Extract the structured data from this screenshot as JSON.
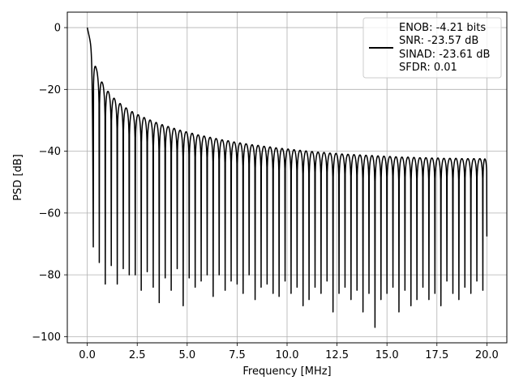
{
  "chart_data": {
    "type": "line",
    "title": "",
    "xlabel": "Frequency [MHz]",
    "ylabel": "PSD [dB]",
    "xlim": [
      -1.0,
      21.0
    ],
    "ylim": [
      -102,
      5
    ],
    "x_ticks": [
      0.0,
      2.5,
      5.0,
      7.5,
      10.0,
      12.5,
      15.0,
      17.5,
      20.0
    ],
    "x_tick_labels": [
      "0.0",
      "2.5",
      "5.0",
      "7.5",
      "10.0",
      "12.5",
      "15.0",
      "17.5",
      "20.0"
    ],
    "y_ticks": [
      0,
      -20,
      -40,
      -60,
      -80,
      -100
    ],
    "y_tick_labels": [
      "0",
      "−20",
      "−40",
      "−60",
      "−80",
      "−100"
    ],
    "grid": true,
    "legend": {
      "placement": "top-right",
      "entries": [
        "ENOB: -4.21 bits",
        "SNR: -23.57 dB",
        "SINAD: -23.61 dB",
        "SFDR: 0.01"
      ]
    },
    "series": [
      {
        "color": "#000000",
        "lobe_spacing_mhz": 0.3,
        "x_range": [
          0.0,
          20.0
        ],
        "lobe_peaks": [
          [
            0.0,
            0
          ],
          [
            0.45,
            -13.3
          ],
          [
            0.75,
            -17.8
          ],
          [
            1.05,
            -20.7
          ],
          [
            1.35,
            -22.9
          ],
          [
            1.65,
            -24.6
          ],
          [
            1.95,
            -26.0
          ],
          [
            2.25,
            -27.2
          ],
          [
            2.55,
            -28.2
          ],
          [
            2.85,
            -29.1
          ],
          [
            3.15,
            -29.9
          ],
          [
            3.45,
            -30.7
          ],
          [
            3.75,
            -31.4
          ],
          [
            4.05,
            -32.0
          ],
          [
            4.35,
            -32.6
          ],
          [
            4.65,
            -33.2
          ],
          [
            4.95,
            -33.7
          ],
          [
            5.25,
            -34.2
          ],
          [
            5.55,
            -34.7
          ],
          [
            5.85,
            -35.1
          ],
          [
            6.15,
            -35.5
          ],
          [
            6.45,
            -35.9
          ],
          [
            6.75,
            -36.3
          ],
          [
            7.05,
            -36.6
          ],
          [
            7.35,
            -37.0
          ],
          [
            7.65,
            -37.3
          ],
          [
            7.95,
            -37.6
          ],
          [
            8.25,
            -37.9
          ],
          [
            8.55,
            -38.1
          ],
          [
            8.85,
            -38.4
          ],
          [
            9.15,
            -38.6
          ],
          [
            9.45,
            -38.9
          ],
          [
            9.75,
            -39.1
          ],
          [
            10.05,
            -39.3
          ],
          [
            10.35,
            -39.5
          ],
          [
            10.65,
            -39.7
          ],
          [
            10.95,
            -39.9
          ],
          [
            11.25,
            -40.1
          ],
          [
            11.55,
            -40.3
          ],
          [
            11.85,
            -40.4
          ],
          [
            12.15,
            -40.6
          ],
          [
            12.45,
            -40.7
          ],
          [
            12.75,
            -40.9
          ],
          [
            13.05,
            -41.0
          ],
          [
            13.35,
            -41.1
          ],
          [
            13.65,
            -41.2
          ],
          [
            13.95,
            -41.3
          ],
          [
            14.25,
            -41.4
          ],
          [
            14.55,
            -41.5
          ],
          [
            14.85,
            -41.6
          ],
          [
            15.15,
            -41.7
          ],
          [
            15.45,
            -41.8
          ],
          [
            15.75,
            -41.9
          ],
          [
            16.05,
            -41.9
          ],
          [
            16.35,
            -42.0
          ],
          [
            16.65,
            -42.1
          ],
          [
            16.95,
            -42.1
          ],
          [
            17.25,
            -42.2
          ],
          [
            17.55,
            -42.2
          ],
          [
            17.85,
            -42.3
          ],
          [
            18.15,
            -42.3
          ],
          [
            18.45,
            -42.3
          ],
          [
            18.75,
            -42.4
          ],
          [
            19.05,
            -42.4
          ],
          [
            19.35,
            -42.4
          ],
          [
            19.65,
            -42.4
          ],
          [
            19.95,
            -42.5
          ]
        ],
        "notch_minima": [
          [
            0.3,
            -71
          ],
          [
            0.6,
            -76
          ],
          [
            0.9,
            -83
          ],
          [
            1.2,
            -77
          ],
          [
            1.5,
            -83
          ],
          [
            1.8,
            -78
          ],
          [
            2.1,
            -80
          ],
          [
            2.4,
            -80
          ],
          [
            2.7,
            -85
          ],
          [
            3.0,
            -79
          ],
          [
            3.3,
            -84
          ],
          [
            3.6,
            -89
          ],
          [
            3.9,
            -81
          ],
          [
            4.2,
            -85
          ],
          [
            4.5,
            -78
          ],
          [
            4.8,
            -90
          ],
          [
            5.1,
            -81
          ],
          [
            5.4,
            -84
          ],
          [
            5.7,
            -82
          ],
          [
            6.0,
            -80
          ],
          [
            6.3,
            -87
          ],
          [
            6.6,
            -80
          ],
          [
            6.9,
            -85
          ],
          [
            7.2,
            -82
          ],
          [
            7.5,
            -83
          ],
          [
            7.8,
            -86
          ],
          [
            8.1,
            -80
          ],
          [
            8.4,
            -88
          ],
          [
            8.7,
            -84
          ],
          [
            9.0,
            -83
          ],
          [
            9.3,
            -86
          ],
          [
            9.6,
            -87
          ],
          [
            9.9,
            -82
          ],
          [
            10.2,
            -86
          ],
          [
            10.5,
            -84
          ],
          [
            10.8,
            -90
          ],
          [
            11.1,
            -88
          ],
          [
            11.4,
            -84
          ],
          [
            11.7,
            -86
          ],
          [
            12.0,
            -82
          ],
          [
            12.3,
            -92
          ],
          [
            12.6,
            -86
          ],
          [
            12.9,
            -84
          ],
          [
            13.2,
            -88
          ],
          [
            13.5,
            -85
          ],
          [
            13.8,
            -92
          ],
          [
            14.1,
            -86
          ],
          [
            14.4,
            -97
          ],
          [
            14.7,
            -88
          ],
          [
            15.0,
            -86
          ],
          [
            15.3,
            -84
          ],
          [
            15.6,
            -92
          ],
          [
            15.9,
            -85
          ],
          [
            16.2,
            -90
          ],
          [
            16.5,
            -88
          ],
          [
            16.8,
            -84
          ],
          [
            17.1,
            -88
          ],
          [
            17.4,
            -86
          ],
          [
            17.7,
            -90
          ],
          [
            18.0,
            -82
          ],
          [
            18.3,
            -86
          ],
          [
            18.6,
            -88
          ],
          [
            18.9,
            -84
          ],
          [
            19.2,
            -86
          ],
          [
            19.5,
            -82
          ],
          [
            19.8,
            -85
          ],
          [
            20.0,
            -69
          ]
        ]
      }
    ]
  }
}
